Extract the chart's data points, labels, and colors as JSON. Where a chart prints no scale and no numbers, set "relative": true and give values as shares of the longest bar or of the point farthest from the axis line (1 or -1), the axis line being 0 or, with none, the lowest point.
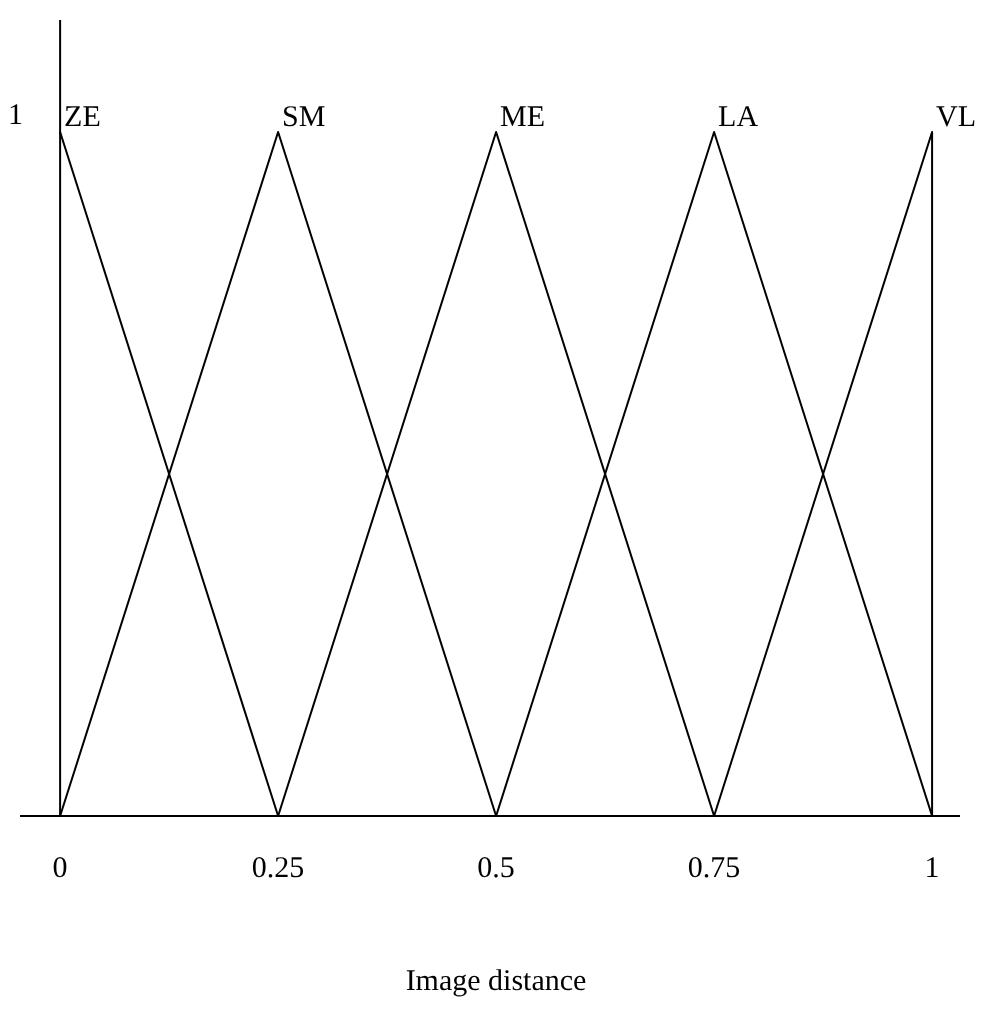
{
  "chart_data": {
    "type": "line",
    "xlabel": "Image distance",
    "xlim": [
      -0.046,
      1.032
    ],
    "relative": true,
    "annotations": [
      "1"
    ],
    "xticks": [
      0,
      0.25,
      0.5,
      0.75,
      1
    ],
    "legend": false,
    "marker": "none",
    "line_style": "solid",
    "series": [
      {
        "name": "ZE",
        "color": "#000000",
        "x": [
          0,
          0.25
        ],
        "values": [
          1,
          0
        ]
      },
      {
        "name": "SM",
        "color": "#000000",
        "x": [
          0,
          0.25,
          0.5
        ],
        "values": [
          0,
          1,
          0
        ]
      },
      {
        "name": "ME",
        "color": "#000000",
        "x": [
          0.25,
          0.5,
          0.75
        ],
        "values": [
          0,
          1,
          0
        ]
      },
      {
        "name": "LA",
        "color": "#000000",
        "x": [
          0.5,
          0.75,
          1
        ],
        "values": [
          0,
          1,
          0
        ]
      },
      {
        "name": "VL",
        "color": "#000000",
        "x": [
          0.75,
          1,
          1
        ],
        "values": [
          0,
          1,
          0
        ]
      }
    ]
  }
}
